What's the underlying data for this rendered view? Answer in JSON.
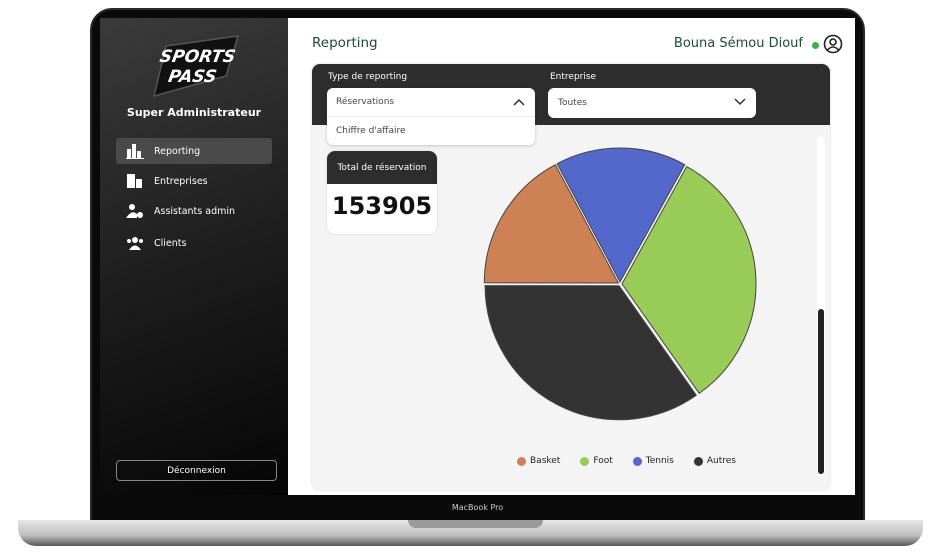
{
  "device": {
    "label": "MacBook Pro"
  },
  "sidebar": {
    "logo_text": "SPORTS PASS",
    "role": "Super Administrateur",
    "items": [
      {
        "label": "Reporting",
        "icon": "bar-chart-icon",
        "active": true
      },
      {
        "label": "Entreprises",
        "icon": "building-icon",
        "active": false
      },
      {
        "label": "Assistants admin",
        "icon": "user-gear-icon",
        "active": false
      },
      {
        "label": "Clients",
        "icon": "users-icon",
        "active": false
      }
    ],
    "logout_label": "Déconnexion"
  },
  "header": {
    "title": "Reporting",
    "user_name": "Bouna Sémou Diouf",
    "status_color": "#3cb043"
  },
  "filters": {
    "type_label": "Type de reporting",
    "type_value": "Réservations",
    "type_options": [
      "Réservations",
      "Chiffre d'affaire"
    ],
    "company_label": "Entreprise",
    "company_value": "Toutes"
  },
  "total": {
    "label": "Total de réservation",
    "value": "153905"
  },
  "chart_data": {
    "type": "pie",
    "categories": [
      "Basket",
      "Foot",
      "Tennis",
      "Autres"
    ],
    "values": [
      17.2,
      32.2,
      15.8,
      34.8
    ],
    "unit": "approximate share (%)",
    "colors": [
      "#cd8155",
      "#99cc57",
      "#5468cc",
      "#333333"
    ],
    "legend": "bottom"
  }
}
